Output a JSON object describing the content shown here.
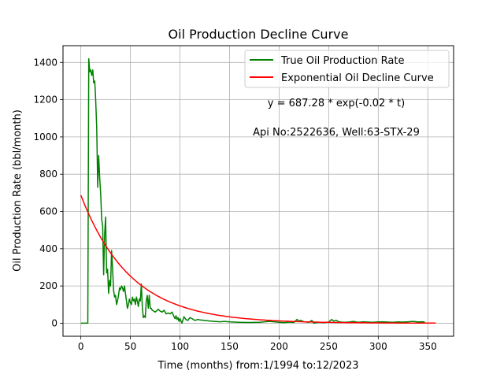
{
  "chart_data": {
    "type": "line",
    "title": "Oil Production Decline Curve",
    "xlabel": "Time (months) from:1/1994 to:12/2023",
    "ylabel": "Oil Production Rate (bbl/month)",
    "xlim": [
      -18,
      376
    ],
    "ylim": [
      -70,
      1490
    ],
    "xticks": [
      0,
      50,
      100,
      150,
      200,
      250,
      300,
      350
    ],
    "yticks": [
      0,
      200,
      400,
      600,
      800,
      1000,
      1200,
      1400
    ],
    "grid": true,
    "legend_position": "top-right",
    "annotations": [
      "y = 687.28 * exp(-0.02 * t)",
      "Api No:2522636, Well:63-STX-29"
    ],
    "series": [
      {
        "name": "True Oil Production Rate",
        "color": "#008000",
        "points": [
          [
            0,
            0
          ],
          [
            7,
            0
          ],
          [
            8,
            1420
          ],
          [
            9,
            1350
          ],
          [
            10,
            1360
          ],
          [
            11,
            1330
          ],
          [
            12,
            1360
          ],
          [
            13,
            1290
          ],
          [
            14,
            1300
          ],
          [
            15,
            1200
          ],
          [
            16,
            1050
          ],
          [
            17,
            730
          ],
          [
            18,
            900
          ],
          [
            19,
            780
          ],
          [
            20,
            700
          ],
          [
            21,
            560
          ],
          [
            22,
            520
          ],
          [
            23,
            260
          ],
          [
            24,
            480
          ],
          [
            25,
            570
          ],
          [
            26,
            270
          ],
          [
            27,
            290
          ],
          [
            28,
            160
          ],
          [
            29,
            230
          ],
          [
            30,
            200
          ],
          [
            31,
            390
          ],
          [
            32,
            300
          ],
          [
            33,
            180
          ],
          [
            34,
            140
          ],
          [
            35,
            150
          ],
          [
            36,
            100
          ],
          [
            37,
            120
          ],
          [
            38,
            150
          ],
          [
            39,
            190
          ],
          [
            40,
            180
          ],
          [
            41,
            200
          ],
          [
            42,
            190
          ],
          [
            43,
            170
          ],
          [
            44,
            200
          ],
          [
            45,
            160
          ],
          [
            46,
            120
          ],
          [
            47,
            80
          ],
          [
            48,
            100
          ],
          [
            49,
            130
          ],
          [
            50,
            110
          ],
          [
            51,
            100
          ],
          [
            52,
            140
          ],
          [
            53,
            120
          ],
          [
            54,
            130
          ],
          [
            55,
            100
          ],
          [
            56,
            140
          ],
          [
            57,
            120
          ],
          [
            58,
            90
          ],
          [
            59,
            130
          ],
          [
            60,
            120
          ],
          [
            61,
            210
          ],
          [
            62,
            90
          ],
          [
            63,
            30
          ],
          [
            64,
            40
          ],
          [
            65,
            30
          ],
          [
            66,
            120
          ],
          [
            67,
            150
          ],
          [
            68,
            80
          ],
          [
            69,
            150
          ],
          [
            70,
            80
          ],
          [
            71,
            80
          ],
          [
            72,
            70
          ],
          [
            75,
            60
          ],
          [
            78,
            75
          ],
          [
            80,
            65
          ],
          [
            82,
            60
          ],
          [
            84,
            70
          ],
          [
            86,
            50
          ],
          [
            88,
            55
          ],
          [
            90,
            50
          ],
          [
            92,
            60
          ],
          [
            94,
            35
          ],
          [
            95,
            25
          ],
          [
            96,
            40
          ],
          [
            97,
            20
          ],
          [
            98,
            30
          ],
          [
            99,
            10
          ],
          [
            100,
            25
          ],
          [
            102,
            0
          ],
          [
            104,
            35
          ],
          [
            106,
            20
          ],
          [
            108,
            15
          ],
          [
            110,
            30
          ],
          [
            112,
            25
          ],
          [
            115,
            15
          ],
          [
            118,
            20
          ],
          [
            120,
            18
          ],
          [
            125,
            15
          ],
          [
            130,
            12
          ],
          [
            135,
            10
          ],
          [
            140,
            8
          ],
          [
            145,
            10
          ],
          [
            150,
            7
          ],
          [
            160,
            5
          ],
          [
            170,
            4
          ],
          [
            180,
            5
          ],
          [
            190,
            10
          ],
          [
            195,
            8
          ],
          [
            200,
            5
          ],
          [
            205,
            3
          ],
          [
            210,
            6
          ],
          [
            215,
            4
          ],
          [
            218,
            20
          ],
          [
            220,
            12
          ],
          [
            222,
            15
          ],
          [
            225,
            8
          ],
          [
            230,
            5
          ],
          [
            233,
            15
          ],
          [
            235,
            0
          ],
          [
            240,
            5
          ],
          [
            245,
            3
          ],
          [
            250,
            6
          ],
          [
            253,
            20
          ],
          [
            255,
            12
          ],
          [
            258,
            15
          ],
          [
            260,
            8
          ],
          [
            265,
            5
          ],
          [
            270,
            6
          ],
          [
            275,
            10
          ],
          [
            280,
            5
          ],
          [
            285,
            8
          ],
          [
            290,
            6
          ],
          [
            295,
            5
          ],
          [
            300,
            7
          ],
          [
            305,
            8
          ],
          [
            310,
            6
          ],
          [
            315,
            5
          ],
          [
            320,
            7
          ],
          [
            325,
            6
          ],
          [
            330,
            8
          ],
          [
            335,
            10
          ],
          [
            340,
            7
          ],
          [
            345,
            8
          ],
          [
            347,
            6
          ]
        ]
      },
      {
        "name": "Exponential Oil Decline Curve",
        "color": "#ff0000",
        "model": {
          "a": 687.28,
          "b": -0.02
        },
        "x_range": [
          0,
          358
        ]
      }
    ]
  }
}
